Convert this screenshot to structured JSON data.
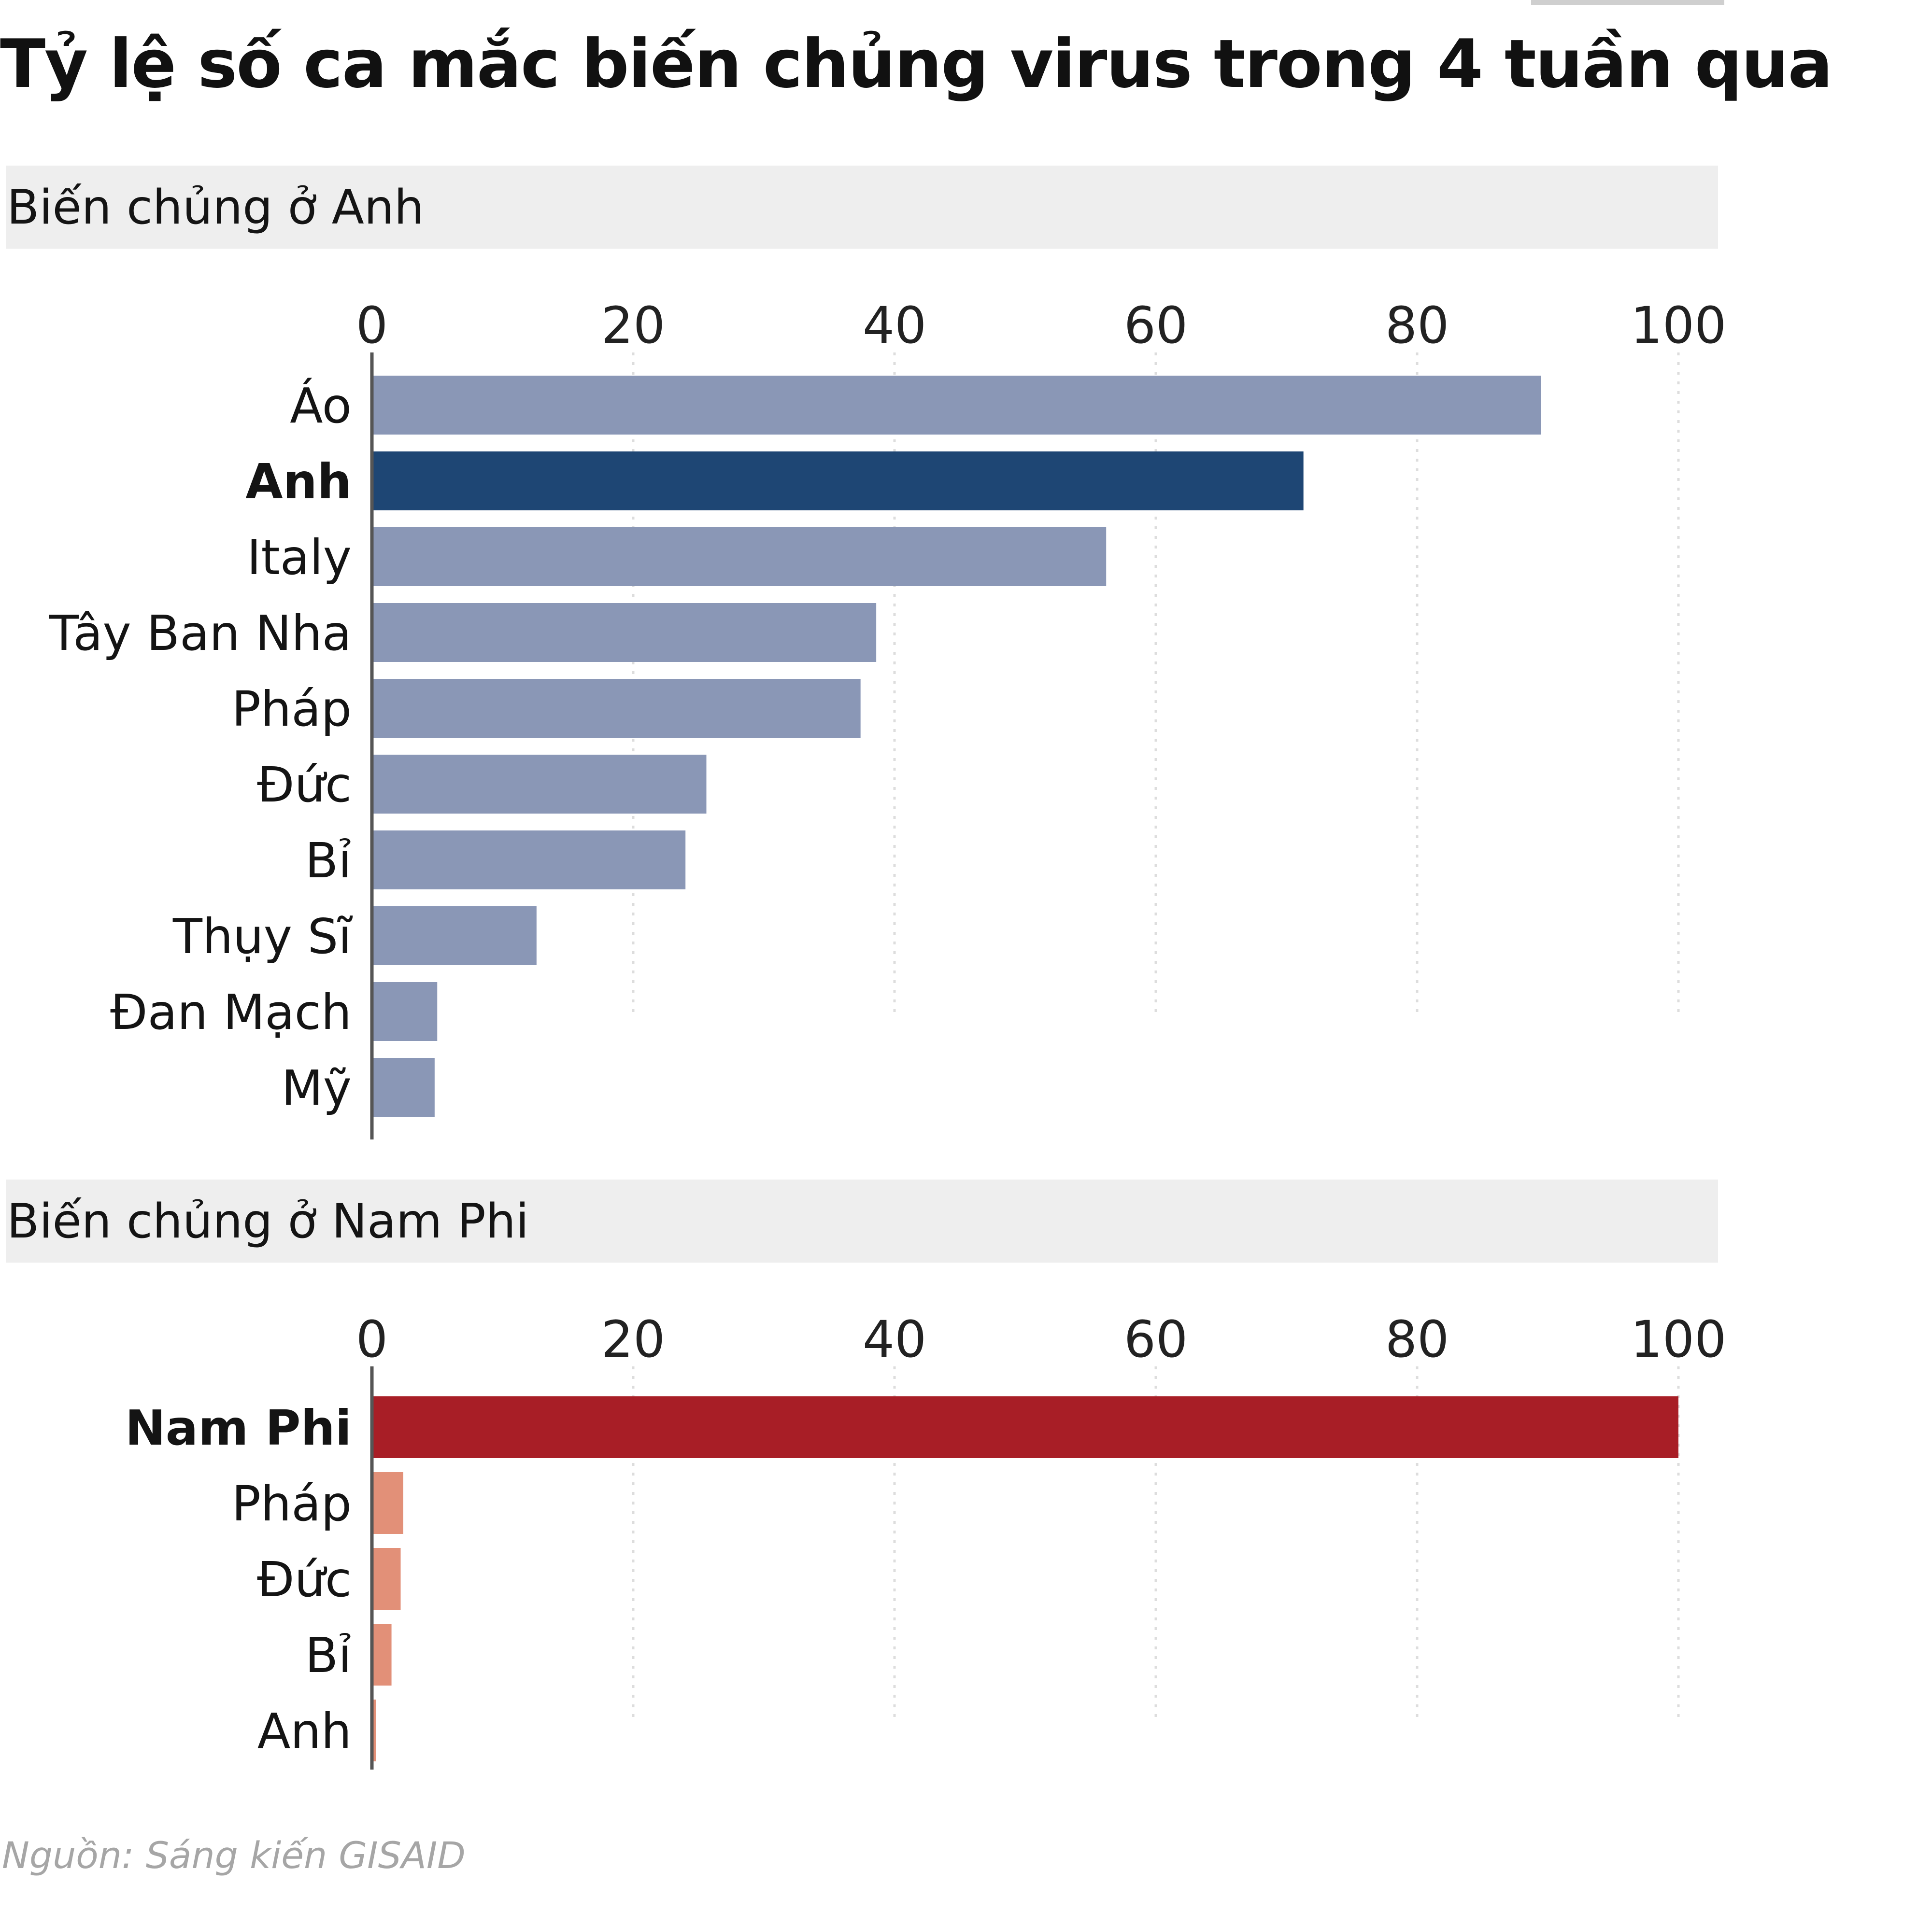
{
  "title": "Tỷ lệ số ca mắc biến chủng virus trong 4 tuần qua",
  "source": "Nguồn: Sáng kiến GISAID",
  "chart_data": [
    {
      "type": "bar",
      "orientation": "horizontal",
      "title": "Biến chủng ở Anh",
      "xlim": [
        0,
        100
      ],
      "ticks": [
        0,
        20,
        40,
        60,
        80,
        100
      ],
      "grid": true,
      "categories": [
        "Áo",
        "Anh",
        "Italy",
        "Tây Ban Nha",
        "Pháp",
        "Đức",
        "Bỉ",
        "Thụy Sĩ",
        "Đan Mạch",
        "Mỹ"
      ],
      "values": [
        89.5,
        71.3,
        56.2,
        38.6,
        37.4,
        25.6,
        24.0,
        12.6,
        5.0,
        4.8
      ],
      "highlight": "Anh",
      "colors": {
        "base": "#8a97b6",
        "highlight": "#1e4674"
      }
    },
    {
      "type": "bar",
      "orientation": "horizontal",
      "title": "Biến chủng ở Nam Phi",
      "xlim": [
        0,
        100
      ],
      "ticks": [
        0,
        20,
        40,
        60,
        80,
        100
      ],
      "grid": true,
      "categories": [
        "Nam Phi",
        "Pháp",
        "Đức",
        "Bỉ",
        "Anh"
      ],
      "values": [
        100,
        2.4,
        2.2,
        1.5,
        0.3
      ],
      "highlight": "Nam Phi",
      "colors": {
        "base": "#e29078",
        "highlight": "#a81e26"
      }
    }
  ]
}
